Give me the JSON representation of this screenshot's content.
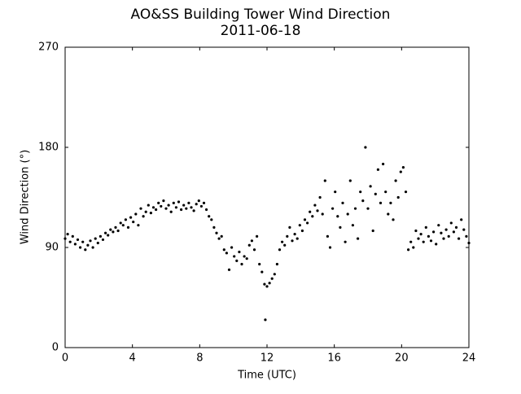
{
  "chart_data": {
    "type": "scatter",
    "title": "AO&SS Building Tower Wind Direction",
    "subtitle": "2011-06-18",
    "x_label": "Time (UTC)",
    "y_label": "Wind Direction (°)",
    "color": "#000000",
    "xlim": [
      0,
      24
    ],
    "xticks": [
      0,
      4,
      8,
      12,
      16,
      20,
      24
    ],
    "ylim": [
      0,
      270
    ],
    "yticks": [
      0,
      90,
      180,
      270
    ],
    "x": [
      0,
      0.15,
      0.3,
      0.45,
      0.6,
      0.75,
      0.9,
      1.05,
      1.2,
      1.35,
      1.5,
      1.65,
      1.8,
      1.95,
      2.1,
      2.25,
      2.4,
      2.55,
      2.7,
      2.85,
      3.0,
      3.15,
      3.3,
      3.45,
      3.6,
      3.75,
      3.9,
      4.05,
      4.2,
      4.35,
      4.5,
      4.65,
      4.8,
      4.95,
      5.1,
      5.25,
      5.4,
      5.55,
      5.7,
      5.85,
      6.0,
      6.15,
      6.3,
      6.45,
      6.6,
      6.75,
      6.9,
      7.05,
      7.2,
      7.35,
      7.5,
      7.65,
      7.8,
      7.95,
      8.1,
      8.25,
      8.4,
      8.55,
      8.7,
      8.85,
      9.0,
      9.15,
      9.3,
      9.45,
      9.6,
      9.75,
      9.9,
      10.05,
      10.2,
      10.35,
      10.5,
      10.65,
      10.8,
      10.95,
      11.1,
      11.25,
      11.4,
      11.55,
      11.7,
      11.85,
      11.9,
      12.0,
      12.15,
      12.3,
      12.45,
      12.6,
      12.75,
      12.9,
      13.05,
      13.2,
      13.35,
      13.5,
      13.65,
      13.8,
      13.95,
      14.1,
      14.25,
      14.4,
      14.55,
      14.7,
      14.85,
      15.0,
      15.15,
      15.3,
      15.45,
      15.6,
      15.75,
      15.9,
      16.05,
      16.2,
      16.35,
      16.5,
      16.65,
      16.8,
      16.95,
      17.1,
      17.25,
      17.4,
      17.55,
      17.7,
      17.85,
      18.0,
      18.15,
      18.3,
      18.45,
      18.6,
      18.75,
      18.9,
      19.05,
      19.2,
      19.35,
      19.5,
      19.65,
      19.8,
      19.95,
      20.1,
      20.25,
      20.4,
      20.55,
      20.7,
      20.85,
      21.0,
      21.15,
      21.3,
      21.45,
      21.6,
      21.75,
      21.9,
      22.05,
      22.2,
      22.35,
      22.5,
      22.65,
      22.8,
      22.95,
      23.1,
      23.25,
      23.4,
      23.55,
      23.7,
      23.85,
      24.0
    ],
    "values": [
      98,
      102,
      95,
      100,
      93,
      97,
      90,
      95,
      88,
      92,
      96,
      90,
      98,
      94,
      100,
      97,
      103,
      101,
      106,
      104,
      108,
      105,
      112,
      110,
      115,
      108,
      117,
      113,
      120,
      110,
      125,
      118,
      122,
      128,
      121,
      126,
      124,
      130,
      127,
      132,
      125,
      128,
      122,
      130,
      126,
      131,
      124,
      128,
      125,
      130,
      126,
      123,
      129,
      132,
      127,
      130,
      124,
      118,
      115,
      108,
      103,
      98,
      100,
      88,
      85,
      70,
      90,
      82,
      78,
      86,
      75,
      82,
      80,
      92,
      96,
      88,
      100,
      75,
      68,
      57,
      25,
      55,
      58,
      62,
      66,
      75,
      88,
      95,
      92,
      100,
      108,
      96,
      102,
      98,
      110,
      105,
      115,
      112,
      122,
      118,
      128,
      123,
      135,
      120,
      150,
      100,
      90,
      125,
      140,
      118,
      108,
      130,
      95,
      120,
      150,
      110,
      125,
      98,
      140,
      132,
      180,
      125,
      145,
      105,
      138,
      160,
      130,
      165,
      140,
      120,
      130,
      115,
      150,
      135,
      158,
      162,
      140,
      88,
      95,
      90,
      105,
      98,
      102,
      95,
      108,
      100,
      96,
      104,
      93,
      110,
      103,
      98,
      106,
      100,
      112,
      104,
      108,
      98,
      115,
      106,
      100,
      94
    ]
  }
}
